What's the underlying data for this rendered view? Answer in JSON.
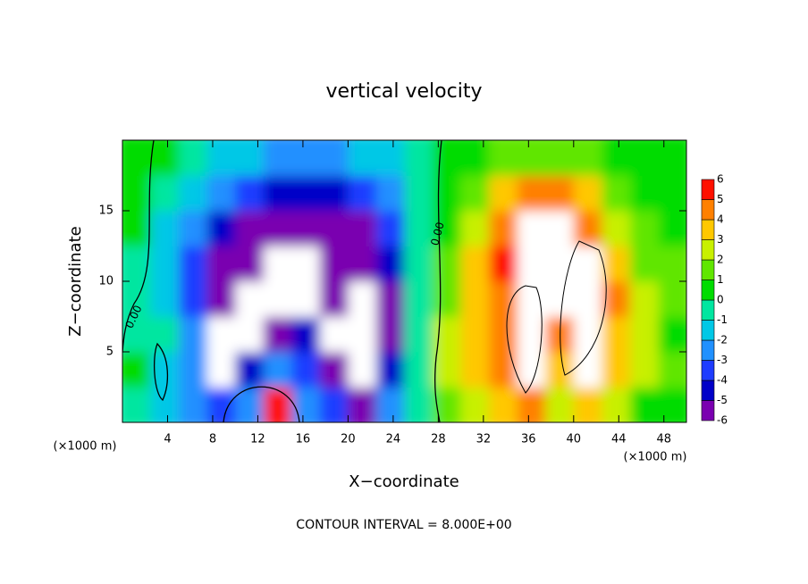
{
  "chart_data": {
    "type": "contour",
    "title": "vertical velocity",
    "x_label": "X−coordinate",
    "y_label": "Z−coordinate",
    "x_unit_left": "(×1000 m)",
    "x_unit_right": "(×1000 m)",
    "footer": "CONTOUR INTERVAL = 8.000E+00",
    "contour_labels": [
      "0.00",
      "0.00"
    ],
    "xlim": [
      0,
      50
    ],
    "ylim": [
      0,
      20
    ],
    "xticks": [
      4,
      8,
      12,
      16,
      20,
      24,
      28,
      32,
      36,
      40,
      44,
      48
    ],
    "yticks": [
      5,
      10,
      15
    ],
    "values": [
      [
        0,
        -1,
        -2,
        -3,
        -2,
        6,
        -2,
        -3,
        -5,
        -2,
        0,
        2,
        3,
        4,
        5,
        3,
        4,
        3,
        1,
        0.5
      ],
      [
        0.5,
        -1,
        -2,
        -8,
        -4,
        -2,
        -3,
        -5,
        -8,
        -4,
        0,
        3,
        4,
        5,
        8,
        4,
        8,
        4,
        3,
        2
      ],
      [
        0,
        -0.5,
        -2,
        -8,
        -8,
        -5,
        -4,
        -8,
        -8,
        -5,
        0,
        3,
        4,
        5,
        8,
        5,
        8,
        4,
        3,
        1
      ],
      [
        0,
        -1,
        -3,
        -5.5,
        -8,
        -8,
        -8,
        -5.5,
        -8,
        -5,
        -0.5,
        2,
        4,
        5,
        8,
        7,
        8,
        5,
        3,
        2
      ],
      [
        0,
        -1,
        -3,
        -5,
        -5.5,
        -8,
        -8,
        -5.5,
        -5.5,
        -4,
        -0.5,
        1.5,
        4,
        5.5,
        7,
        7,
        7,
        4,
        2,
        2
      ],
      [
        0.5,
        -1,
        -2,
        -4,
        -5,
        -5.5,
        -5.5,
        -5,
        -5,
        -3,
        -0.5,
        1,
        3,
        5,
        7,
        7,
        5,
        3,
        1.5,
        1
      ],
      [
        0.5,
        -0.5,
        -1,
        -2,
        -3,
        -4,
        -4.5,
        -4,
        -3,
        -2,
        0,
        0.5,
        2,
        3.5,
        4.5,
        4.5,
        3.5,
        2,
        1,
        0.5
      ],
      [
        0.5,
        0.5,
        -0.5,
        -1,
        -1.5,
        -2,
        -2,
        -2,
        -1.5,
        -1,
        0,
        0.5,
        1,
        1.5,
        2,
        2,
        1.5,
        1,
        0.5,
        0.5
      ]
    ],
    "colorbar": {
      "ticks": [
        -6,
        -5,
        -4,
        -3,
        -2,
        -1,
        0,
        1,
        2,
        3,
        4,
        5,
        6
      ],
      "colors": [
        "#7a00b0",
        "#0000c8",
        "#1e3cff",
        "#2090ff",
        "#00c8e6",
        "#00e6a0",
        "#00dc00",
        "#60e600",
        "#c8f000",
        "#ffc800",
        "#ff8000",
        "#ff1000"
      ],
      "over_color": "#ffffff",
      "under_color": "#ffffff"
    }
  }
}
